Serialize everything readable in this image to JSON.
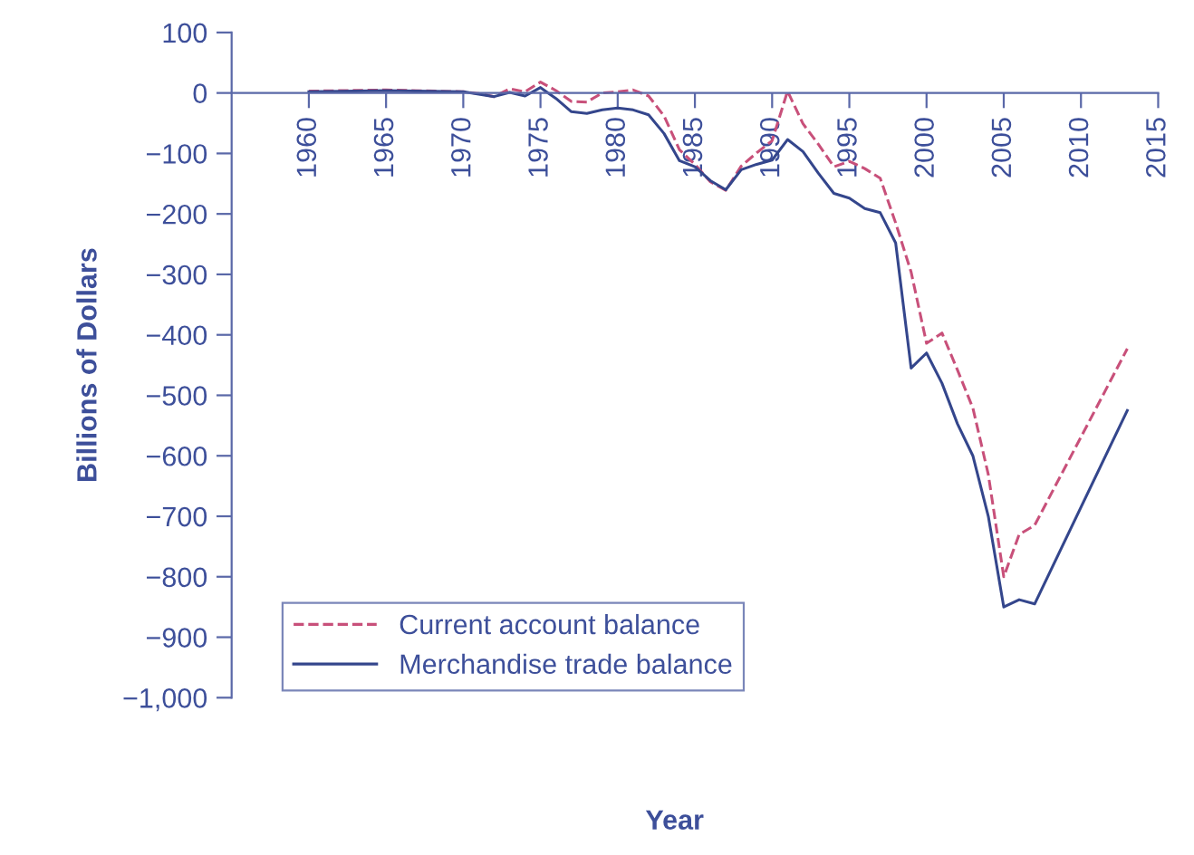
{
  "chart_data": {
    "type": "line",
    "xlabel": "Year",
    "ylabel": "Billions of Dollars",
    "xlim": [
      1955,
      2015
    ],
    "xticks": [
      1960,
      1965,
      1970,
      1975,
      1980,
      1985,
      1990,
      1995,
      2000,
      2005,
      2010,
      2015
    ],
    "ylim": [
      -1000,
      100
    ],
    "yticks": [
      100,
      0,
      {
        "value": -100,
        "label": "−100"
      },
      {
        "value": -200,
        "label": "−200"
      },
      {
        "value": -300,
        "label": "−300"
      },
      {
        "value": -400,
        "label": "−400"
      },
      {
        "value": -500,
        "label": "−500"
      },
      {
        "value": -600,
        "label": "−600"
      },
      {
        "value": -700,
        "label": "−700"
      },
      {
        "value": -800,
        "label": "−800"
      },
      {
        "value": -900,
        "label": "−900"
      },
      {
        "value": -1000,
        "label": "−1,000"
      }
    ],
    "grid": false,
    "legend": "bottom left",
    "marker": "none",
    "series": [
      {
        "name": "Current account balance",
        "color": "#c8507a",
        "line_style": "dashed",
        "x": [
          1960,
          1965,
          1970,
          1971,
          1972,
          1973,
          1974,
          1975,
          1976,
          1977,
          1978,
          1979,
          1980,
          1981,
          1982,
          1983,
          1984,
          1985,
          1986,
          1987,
          1988,
          1989,
          1990,
          1991,
          1992,
          1993,
          1994,
          1995,
          1996,
          1997,
          1998,
          1999,
          2000,
          2001,
          2002,
          2003,
          2004,
          2005,
          2006,
          2007,
          2013
        ],
        "values": [
          3,
          5,
          2,
          -1,
          -6,
          7,
          2,
          18,
          4,
          -14,
          -15,
          0,
          2,
          5,
          -5,
          -38,
          -94,
          -118,
          -147,
          -161,
          -121,
          -99,
          -79,
          3,
          -51,
          -85,
          -122,
          -113,
          -125,
          -141,
          -215,
          -296,
          -414,
          -397,
          -458,
          -521,
          -631,
          -800,
          -730,
          -715,
          -423
        ]
      },
      {
        "name": "Merchandise trade balance",
        "color": "#34468c",
        "line_style": "solid",
        "x": [
          1960,
          1965,
          1970,
          1971,
          1972,
          1973,
          1974,
          1975,
          1976,
          1977,
          1978,
          1979,
          1980,
          1981,
          1982,
          1983,
          1984,
          1985,
          1986,
          1987,
          1988,
          1989,
          1990,
          1991,
          1992,
          1993,
          1994,
          1995,
          1996,
          1997,
          1998,
          1999,
          2000,
          2001,
          2002,
          2003,
          2004,
          2005,
          2006,
          2007,
          2013
        ],
        "values": [
          2,
          4,
          2,
          -2,
          -6,
          1,
          -5,
          9,
          -9,
          -31,
          -34,
          -28,
          -25,
          -28,
          -36,
          -67,
          -112,
          -122,
          -145,
          -160,
          -127,
          -118,
          -111,
          -77,
          -97,
          -133,
          -166,
          -174,
          -191,
          -198,
          -248,
          -455,
          -430,
          -480,
          -547,
          -600,
          -700,
          -850,
          -838,
          -845,
          -525
        ]
      }
    ]
  }
}
